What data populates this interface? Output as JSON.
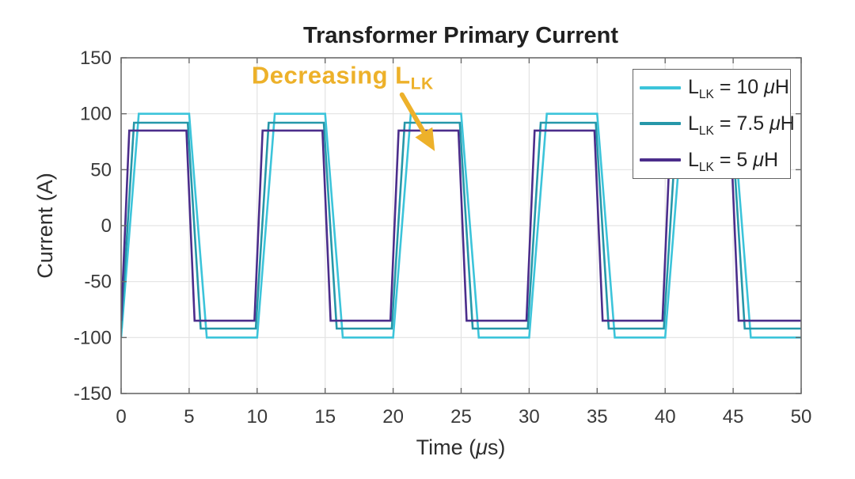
{
  "chart_data": {
    "type": "line",
    "title": "Transformer Primary Current",
    "xlabel_parts": {
      "pre": "Time (",
      "mu": "μ",
      "post": "s)"
    },
    "ylabel": "Current (A)",
    "xlim": [
      0,
      50
    ],
    "ylim": [
      -150,
      150
    ],
    "xticks": [
      0,
      5,
      10,
      15,
      20,
      25,
      30,
      35,
      40,
      45,
      50
    ],
    "yticks": [
      -150,
      -100,
      -50,
      0,
      50,
      100,
      150
    ],
    "grid": true,
    "legend_position": "top-right",
    "series": [
      {
        "name": "L_LK = 10 μH",
        "color": "#3CC4DA",
        "period_us": 10,
        "amplitude_A": 100,
        "transition_us": 1.3,
        "points": [
          [
            0,
            -100
          ],
          [
            1.3,
            100
          ],
          [
            5,
            100
          ],
          [
            6.3,
            -100
          ],
          [
            10,
            -100
          ],
          [
            11.3,
            100
          ],
          [
            15,
            100
          ],
          [
            16.3,
            -100
          ],
          [
            20,
            -100
          ],
          [
            21.3,
            100
          ],
          [
            25,
            100
          ],
          [
            26.3,
            -100
          ],
          [
            30,
            -100
          ],
          [
            31.3,
            100
          ],
          [
            35,
            100
          ],
          [
            36.3,
            -100
          ],
          [
            40,
            -100
          ],
          [
            41.3,
            100
          ],
          [
            45,
            100
          ],
          [
            46.3,
            -100
          ],
          [
            50,
            -100
          ]
        ]
      },
      {
        "name": "L_LK = 7.5 μH",
        "color": "#2697A9",
        "period_us": 10,
        "amplitude_A": 92,
        "transition_us": 0.95,
        "points": [
          [
            0,
            -92
          ],
          [
            0.95,
            92
          ],
          [
            4.9,
            92
          ],
          [
            5.85,
            -92
          ],
          [
            9.9,
            -92
          ],
          [
            10.85,
            92
          ],
          [
            14.9,
            92
          ],
          [
            15.85,
            -92
          ],
          [
            19.9,
            -92
          ],
          [
            20.85,
            92
          ],
          [
            24.9,
            92
          ],
          [
            25.85,
            -92
          ],
          [
            29.9,
            -92
          ],
          [
            30.85,
            92
          ],
          [
            34.9,
            92
          ],
          [
            35.85,
            -92
          ],
          [
            39.9,
            -92
          ],
          [
            40.85,
            92
          ],
          [
            44.9,
            92
          ],
          [
            45.85,
            -92
          ],
          [
            50,
            -92
          ]
        ]
      },
      {
        "name": "L_LK = 5 μH",
        "color": "#4B2D8B",
        "period_us": 10,
        "amplitude_A": 85,
        "transition_us": 0.6,
        "points": [
          [
            0,
            -85
          ],
          [
            0.6,
            85
          ],
          [
            4.8,
            85
          ],
          [
            5.4,
            -85
          ],
          [
            9.8,
            -85
          ],
          [
            10.4,
            85
          ],
          [
            14.8,
            85
          ],
          [
            15.4,
            -85
          ],
          [
            19.8,
            -85
          ],
          [
            20.4,
            85
          ],
          [
            24.8,
            85
          ],
          [
            25.4,
            -85
          ],
          [
            29.8,
            -85
          ],
          [
            30.4,
            85
          ],
          [
            34.8,
            85
          ],
          [
            35.4,
            -85
          ],
          [
            39.8,
            -85
          ],
          [
            40.4,
            85
          ],
          [
            44.8,
            85
          ],
          [
            45.4,
            -85
          ],
          [
            50,
            -85
          ]
        ]
      }
    ],
    "annotation": {
      "text": "Decreasing L",
      "sub": "LK",
      "color": "#EDB12A",
      "text_at": [
        9.6,
        127
      ],
      "arrow_from": [
        20.65,
        117
      ],
      "arrow_to": [
        22.85,
        71
      ]
    },
    "legend": {
      "items": [
        {
          "pre": "L",
          "sub": "LK",
          "eq": " = ",
          "value": "10",
          "mu": " μ",
          "unit": "H"
        },
        {
          "pre": "L",
          "sub": "LK",
          "eq": " = ",
          "value": "7.5",
          "mu": " μ",
          "unit": "H"
        },
        {
          "pre": "L",
          "sub": "LK",
          "eq": " = ",
          "value": "5",
          "mu": " μ",
          "unit": "H"
        }
      ]
    },
    "style": {
      "grid_color": "#E3E3E3",
      "frame_color": "#6A6A6A",
      "background": "#FFFFFF"
    }
  }
}
